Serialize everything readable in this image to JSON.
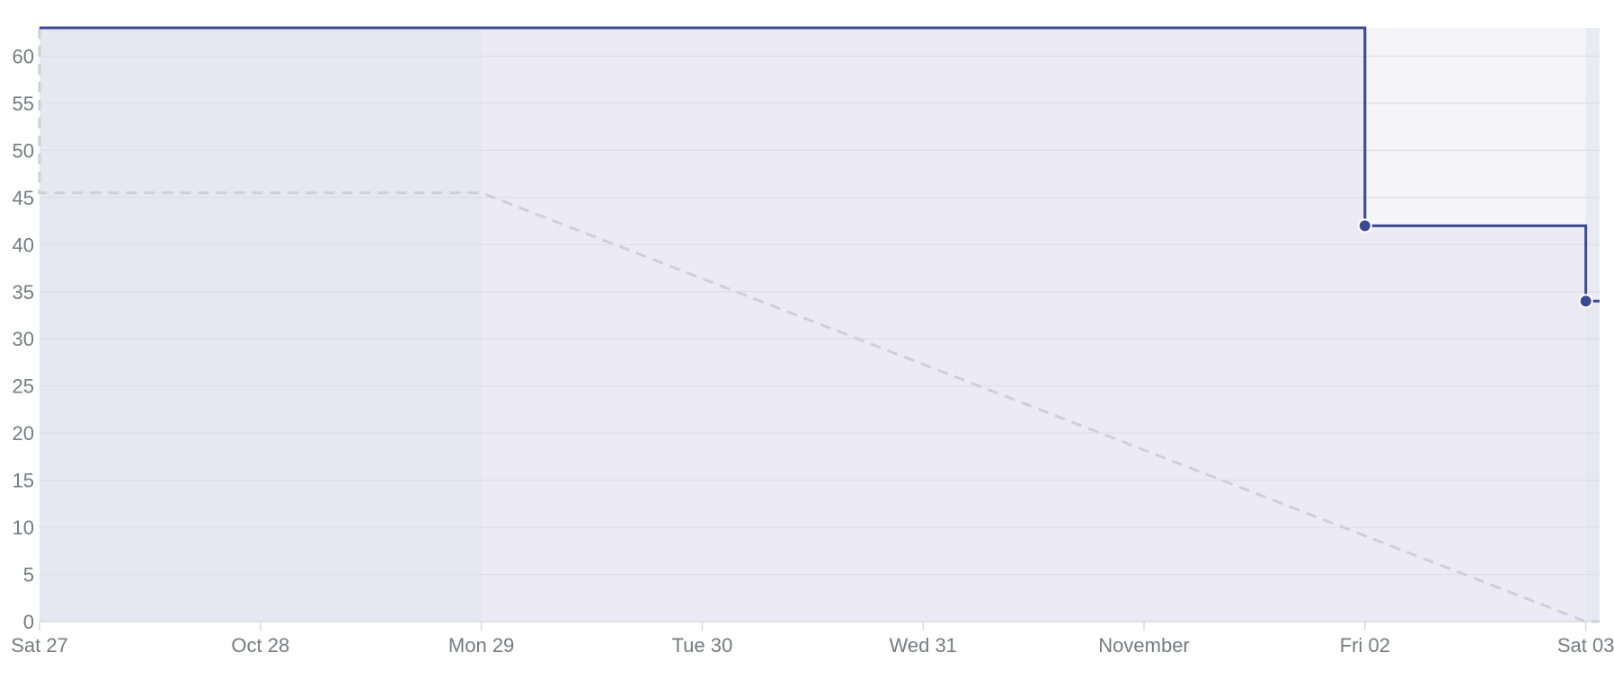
{
  "chart_data": {
    "type": "line",
    "title": "",
    "xlabel": "",
    "ylabel": "",
    "x_tick_labels": [
      "Sat 27",
      "Oct 28",
      "Mon 29",
      "Tue 30",
      "Wed 31",
      "November",
      "Fri 02",
      "Sat 03"
    ],
    "x_tick_dates": [
      "2018-10-27",
      "2018-10-28",
      "2018-10-29",
      "2018-10-30",
      "2018-10-31",
      "2018-11-01",
      "2018-11-02",
      "2018-11-03"
    ],
    "xlim": [
      "2018-10-27",
      "2018-11-03T01:30"
    ],
    "ylim": [
      0,
      63
    ],
    "y_ticks": [
      0,
      5,
      10,
      15,
      20,
      25,
      30,
      35,
      40,
      45,
      50,
      55,
      60
    ],
    "grid": true,
    "weekend_bands": [
      [
        "2018-10-27",
        "2018-10-29"
      ],
      [
        "2018-11-03",
        "2018-11-03T01:30"
      ]
    ],
    "series": [
      {
        "style": "solid",
        "color": "#3b4a92",
        "step": true,
        "points": [
          {
            "x": "2018-10-27",
            "y": 63
          },
          {
            "x": "2018-11-02",
            "y": 42
          },
          {
            "x": "2018-11-03",
            "y": 34
          },
          {
            "x": "2018-11-03T01:30",
            "y": 34
          }
        ],
        "markers": [
          {
            "x": "2018-11-02",
            "y": 42
          },
          {
            "x": "2018-11-03",
            "y": 34
          }
        ]
      },
      {
        "style": "dashed",
        "color": "#cfcfd4",
        "points": [
          {
            "x": "2018-10-27",
            "y": 63
          },
          {
            "x": "2018-10-27",
            "y": 45.5
          },
          {
            "x": "2018-10-29",
            "y": 45.5
          },
          {
            "x": "2018-11-03",
            "y": 0
          },
          {
            "x": "2018-11-03T01:30",
            "y": 0
          }
        ]
      }
    ],
    "colors": {
      "area_fill": "#ecebf5",
      "weekend_fill": "#e6e5ef",
      "outside_fill": "#f5f5f7",
      "grid": "#dedde6",
      "axis": "#d8d8de"
    }
  }
}
